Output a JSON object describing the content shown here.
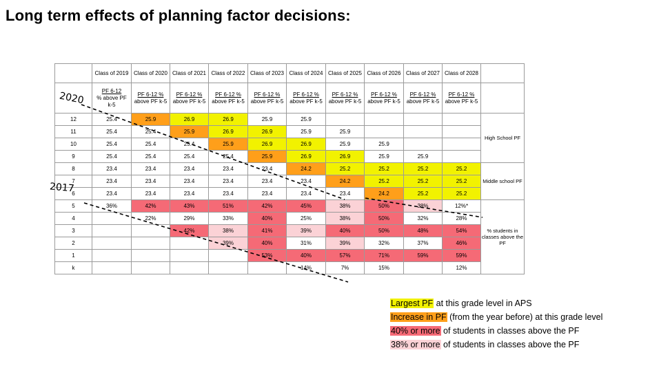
{
  "title": "Long term effects of planning factor decisions:",
  "year_labels": {
    "y2020": "2020",
    "y2017": "2017"
  },
  "header_classes": [
    "Class of 2019",
    "Class of 2020",
    "Class of 2021",
    "Class of 2022",
    "Class of 2023",
    "Class of 2024",
    "Class of 2025",
    "Class of 2026",
    "Class of 2027",
    "Class of 2028"
  ],
  "header_pf": [
    {
      "top": "PF 6-12",
      "bottom": "% above PF k-5"
    },
    {
      "top": "PF 6-12 %",
      "bottom": "above PF k-5"
    },
    {
      "top": "PF 6-12 %",
      "bottom": "above PF k-5"
    },
    {
      "top": "PF 6-12 %",
      "bottom": "above PF k-5"
    },
    {
      "top": "PF 6-12 %",
      "bottom": "above PF k-5"
    },
    {
      "top": "PF 6-12 %",
      "bottom": "above PF k-5"
    },
    {
      "top": "PF 6-12 %",
      "bottom": "above PF k-5"
    },
    {
      "top": "PF 6-12 %",
      "bottom": "above PF k-5"
    },
    {
      "top": "PF 6-12 %",
      "bottom": "above PF k-5"
    },
    {
      "top": "PF 6-12 %",
      "bottom": "above PF k-5"
    }
  ],
  "rows": [
    {
      "grade": "12",
      "cells": [
        {
          "v": "25.4"
        },
        {
          "v": "25.9",
          "c": "o"
        },
        {
          "v": "26.9",
          "c": "y"
        },
        {
          "v": "26.9",
          "c": "y"
        },
        {
          "v": "25.9"
        },
        {
          "v": "25.9"
        },
        {
          "v": ""
        },
        {
          "v": ""
        },
        {
          "v": ""
        },
        {
          "v": ""
        }
      ]
    },
    {
      "grade": "11",
      "cells": [
        {
          "v": "25.4"
        },
        {
          "v": "25.4"
        },
        {
          "v": "25.9",
          "c": "o"
        },
        {
          "v": "26.9",
          "c": "y"
        },
        {
          "v": "26.9",
          "c": "y"
        },
        {
          "v": "25.9"
        },
        {
          "v": "25.9"
        },
        {
          "v": ""
        },
        {
          "v": ""
        },
        {
          "v": ""
        }
      ]
    },
    {
      "grade": "10",
      "cells": [
        {
          "v": "25.4"
        },
        {
          "v": "25.4"
        },
        {
          "v": "25.4"
        },
        {
          "v": "25.9",
          "c": "o"
        },
        {
          "v": "26.9",
          "c": "y"
        },
        {
          "v": "26.9",
          "c": "y"
        },
        {
          "v": "25.9"
        },
        {
          "v": "25.9"
        },
        {
          "v": ""
        },
        {
          "v": ""
        }
      ]
    },
    {
      "grade": "9",
      "cells": [
        {
          "v": "25.4"
        },
        {
          "v": "25.4"
        },
        {
          "v": "25.4"
        },
        {
          "v": "25.4"
        },
        {
          "v": "25.9",
          "c": "o"
        },
        {
          "v": "26.9",
          "c": "y"
        },
        {
          "v": "26.9",
          "c": "y"
        },
        {
          "v": "25.9"
        },
        {
          "v": "25.9"
        },
        {
          "v": ""
        }
      ]
    },
    {
      "grade": "8",
      "cells": [
        {
          "v": "23.4"
        },
        {
          "v": "23.4"
        },
        {
          "v": "23.4"
        },
        {
          "v": "23.4"
        },
        {
          "v": "23.4"
        },
        {
          "v": "24.2",
          "c": "o"
        },
        {
          "v": "25.2",
          "c": "y"
        },
        {
          "v": "25.2",
          "c": "y"
        },
        {
          "v": "25.2",
          "c": "y"
        },
        {
          "v": "25.2",
          "c": "y"
        }
      ]
    },
    {
      "grade": "7",
      "cells": [
        {
          "v": "23.4"
        },
        {
          "v": "23.4"
        },
        {
          "v": "23.4"
        },
        {
          "v": "23.4"
        },
        {
          "v": "23.4"
        },
        {
          "v": "23.4"
        },
        {
          "v": "24.2",
          "c": "o"
        },
        {
          "v": "25.2",
          "c": "y"
        },
        {
          "v": "25.2",
          "c": "y"
        },
        {
          "v": "25.2",
          "c": "y"
        }
      ]
    },
    {
      "grade": "6",
      "cells": [
        {
          "v": "23.4"
        },
        {
          "v": "23.4"
        },
        {
          "v": "23.4"
        },
        {
          "v": "23.4"
        },
        {
          "v": "23.4"
        },
        {
          "v": "23.4"
        },
        {
          "v": "23.4"
        },
        {
          "v": "24.2",
          "c": "o"
        },
        {
          "v": "25.2",
          "c": "y"
        },
        {
          "v": "25.2",
          "c": "y"
        }
      ]
    },
    {
      "grade": "5",
      "cells": [
        {
          "v": "36%"
        },
        {
          "v": "42%",
          "c": "r"
        },
        {
          "v": "43%",
          "c": "r"
        },
        {
          "v": "51%",
          "c": "r"
        },
        {
          "v": "42%",
          "c": "r"
        },
        {
          "v": "45%",
          "c": "r"
        },
        {
          "v": "38%",
          "c": "p"
        },
        {
          "v": "50%",
          "c": "r"
        },
        {
          "v": "38%",
          "c": "p"
        },
        {
          "v": "12%*"
        }
      ]
    },
    {
      "grade": "4",
      "cells": [
        {
          "v": ""
        },
        {
          "v": "22%"
        },
        {
          "v": "29%"
        },
        {
          "v": "33%"
        },
        {
          "v": "40%",
          "c": "r"
        },
        {
          "v": "25%"
        },
        {
          "v": "38%",
          "c": "p"
        },
        {
          "v": "50%",
          "c": "r"
        },
        {
          "v": "32%"
        },
        {
          "v": "28%"
        }
      ]
    },
    {
      "grade": "3",
      "cells": [
        {
          "v": ""
        },
        {
          "v": ""
        },
        {
          "v": "42%",
          "c": "r"
        },
        {
          "v": "38%",
          "c": "p"
        },
        {
          "v": "41%",
          "c": "r"
        },
        {
          "v": "39%",
          "c": "p"
        },
        {
          "v": "40%",
          "c": "r"
        },
        {
          "v": "50%",
          "c": "r"
        },
        {
          "v": "48%",
          "c": "r"
        },
        {
          "v": "54%",
          "c": "r"
        }
      ]
    },
    {
      "grade": "2",
      "cells": [
        {
          "v": ""
        },
        {
          "v": ""
        },
        {
          "v": ""
        },
        {
          "v": "39%",
          "c": "p"
        },
        {
          "v": "40%",
          "c": "r"
        },
        {
          "v": "31%"
        },
        {
          "v": "39%",
          "c": "p"
        },
        {
          "v": "32%"
        },
        {
          "v": "37%"
        },
        {
          "v": "46%",
          "c": "r"
        }
      ]
    },
    {
      "grade": "1",
      "cells": [
        {
          "v": ""
        },
        {
          "v": ""
        },
        {
          "v": ""
        },
        {
          "v": ""
        },
        {
          "v": "53%",
          "c": "r"
        },
        {
          "v": "40%",
          "c": "r"
        },
        {
          "v": "57%",
          "c": "r"
        },
        {
          "v": "71%",
          "c": "r"
        },
        {
          "v": "59%",
          "c": "r"
        },
        {
          "v": "59%",
          "c": "r"
        }
      ]
    },
    {
      "grade": "k",
      "cells": [
        {
          "v": ""
        },
        {
          "v": ""
        },
        {
          "v": ""
        },
        {
          "v": ""
        },
        {
          "v": ""
        },
        {
          "v": "14%"
        },
        {
          "v": "7%"
        },
        {
          "v": "15%"
        },
        {
          "v": ""
        },
        {
          "v": "12%"
        }
      ]
    }
  ],
  "side_labels": {
    "high_school": "High School PF",
    "middle_school": "Middle school PF",
    "students": "% students in classes above the PF"
  },
  "legend": [
    {
      "swatch": "Largest PF",
      "rest": " at this grade level in APS",
      "color": "yellow"
    },
    {
      "swatch": "Increase in PF",
      "rest": " (from the year before) at this grade level",
      "color": "orange"
    },
    {
      "swatch": "40%  or more",
      "rest": " of students in classes above the PF",
      "color": "red"
    },
    {
      "swatch": "38% or more",
      "rest": " of students in classes above the PF",
      "color": "pink"
    }
  ],
  "colors": {
    "yellow": "#f2f200",
    "orange": "#ff9f1a",
    "red": "#f56a76",
    "pink": "#fbd2d6"
  }
}
